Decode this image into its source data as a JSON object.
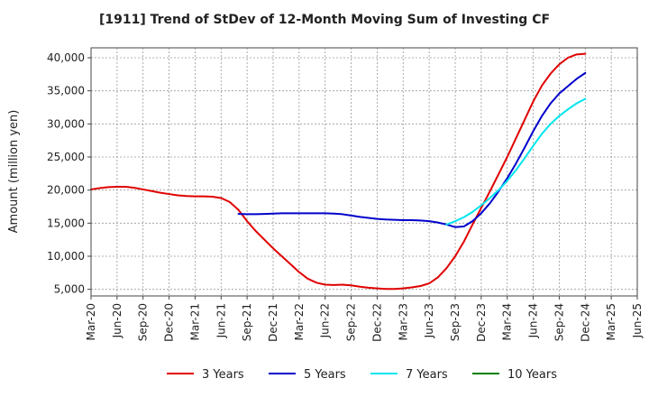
{
  "chart_data": {
    "type": "line",
    "title": "[1911]  Trend of StDev of 12-Month Moving Sum of Investing CF",
    "xlabel": "",
    "ylabel": "Amount (million yen)",
    "ylim": [
      4000,
      41500
    ],
    "yticks": [
      5000,
      10000,
      15000,
      20000,
      25000,
      30000,
      35000,
      40000
    ],
    "ytick_labels": [
      "5,000",
      "10,000",
      "15,000",
      "20,000",
      "25,000",
      "30,000",
      "35,000",
      "40,000"
    ],
    "xticks": [
      "Mar-20",
      "Jun-20",
      "Sep-20",
      "Dec-20",
      "Mar-21",
      "Jun-21",
      "Sep-21",
      "Dec-21",
      "Mar-22",
      "Jun-22",
      "Sep-22",
      "Dec-22",
      "Mar-23",
      "Jun-23",
      "Sep-23",
      "Dec-23",
      "Mar-24",
      "Jun-24",
      "Sep-24",
      "Dec-24",
      "Mar-25",
      "Jun-25"
    ],
    "grid": true,
    "legend_position": "bottom",
    "series": [
      {
        "name": "3 Years",
        "color": "#e00000",
        "points": [
          [
            "Mar-20",
            20100
          ],
          [
            "Apr-20",
            20300
          ],
          [
            "May-20",
            20450
          ],
          [
            "Jun-20",
            20500
          ],
          [
            "Jul-20",
            20500
          ],
          [
            "Aug-20",
            20350
          ],
          [
            "Sep-20",
            20100
          ],
          [
            "Oct-20",
            19850
          ],
          [
            "Nov-20",
            19600
          ],
          [
            "Dec-20",
            19400
          ],
          [
            "Jan-21",
            19200
          ],
          [
            "Feb-21",
            19100
          ],
          [
            "Mar-21",
            19050
          ],
          [
            "Apr-21",
            19050
          ],
          [
            "May-21",
            19000
          ],
          [
            "Jun-21",
            18800
          ],
          [
            "Jul-21",
            18200
          ],
          [
            "Aug-21",
            17000
          ],
          [
            "Sep-21",
            15300
          ],
          [
            "Oct-21",
            13800
          ],
          [
            "Nov-21",
            12500
          ],
          [
            "Dec-21",
            11200
          ],
          [
            "Jan-22",
            10000
          ],
          [
            "Feb-22",
            8800
          ],
          [
            "Mar-22",
            7600
          ],
          [
            "Apr-22",
            6600
          ],
          [
            "May-22",
            6000
          ],
          [
            "Jun-22",
            5700
          ],
          [
            "Jul-22",
            5650
          ],
          [
            "Aug-22",
            5700
          ],
          [
            "Sep-22",
            5600
          ],
          [
            "Oct-22",
            5400
          ],
          [
            "Nov-22",
            5250
          ],
          [
            "Dec-22",
            5150
          ],
          [
            "Jan-23",
            5050
          ],
          [
            "Feb-23",
            5050
          ],
          [
            "Mar-23",
            5150
          ],
          [
            "Apr-23",
            5300
          ],
          [
            "May-23",
            5500
          ],
          [
            "Jun-23",
            5900
          ],
          [
            "Jul-23",
            6800
          ],
          [
            "Aug-23",
            8200
          ],
          [
            "Sep-23",
            10000
          ],
          [
            "Oct-23",
            12200
          ],
          [
            "Nov-23",
            14800
          ],
          [
            "Dec-23",
            17300
          ],
          [
            "Jan-24",
            19800
          ],
          [
            "Feb-24",
            22400
          ],
          [
            "Mar-24",
            25000
          ],
          [
            "Apr-24",
            27800
          ],
          [
            "May-24",
            30600
          ],
          [
            "Jun-24",
            33400
          ],
          [
            "Jul-24",
            35800
          ],
          [
            "Aug-24",
            37600
          ],
          [
            "Sep-24",
            39000
          ],
          [
            "Oct-24",
            40000
          ],
          [
            "Nov-24",
            40500
          ],
          [
            "Dec-24",
            40600
          ]
        ]
      },
      {
        "name": "5 Years",
        "color": "#0000cc",
        "points": [
          [
            "Aug-21",
            16400
          ],
          [
            "Sep-21",
            16350
          ],
          [
            "Oct-21",
            16350
          ],
          [
            "Nov-21",
            16400
          ],
          [
            "Dec-21",
            16450
          ],
          [
            "Jan-22",
            16500
          ],
          [
            "Feb-22",
            16500
          ],
          [
            "Mar-22",
            16500
          ],
          [
            "Apr-22",
            16500
          ],
          [
            "May-22",
            16500
          ],
          [
            "Jun-22",
            16500
          ],
          [
            "Jul-22",
            16450
          ],
          [
            "Aug-22",
            16350
          ],
          [
            "Sep-22",
            16150
          ],
          [
            "Oct-22",
            15950
          ],
          [
            "Nov-22",
            15800
          ],
          [
            "Dec-22",
            15650
          ],
          [
            "Jan-23",
            15550
          ],
          [
            "Feb-23",
            15500
          ],
          [
            "Mar-23",
            15450
          ],
          [
            "Apr-23",
            15450
          ],
          [
            "May-23",
            15400
          ],
          [
            "Jun-23",
            15300
          ],
          [
            "Jul-23",
            15100
          ],
          [
            "Aug-23",
            14800
          ],
          [
            "Sep-23",
            14400
          ],
          [
            "Oct-23",
            14500
          ],
          [
            "Nov-23",
            15300
          ],
          [
            "Dec-23",
            16500
          ],
          [
            "Jan-24",
            18000
          ],
          [
            "Feb-24",
            19800
          ],
          [
            "Mar-24",
            21800
          ],
          [
            "Apr-24",
            24000
          ],
          [
            "May-24",
            26400
          ],
          [
            "Jun-24",
            28900
          ],
          [
            "Jul-24",
            31200
          ],
          [
            "Aug-24",
            33100
          ],
          [
            "Sep-24",
            34600
          ],
          [
            "Oct-24",
            35700
          ],
          [
            "Nov-24",
            36800
          ],
          [
            "Dec-24",
            37700
          ]
        ]
      },
      {
        "name": "7 Years",
        "color": "#00e5ee",
        "points": [
          [
            "Aug-23",
            14800
          ],
          [
            "Sep-23",
            15300
          ],
          [
            "Oct-23",
            15900
          ],
          [
            "Nov-23",
            16700
          ],
          [
            "Dec-23",
            17700
          ],
          [
            "Jan-24",
            18800
          ],
          [
            "Feb-24",
            20000
          ],
          [
            "Mar-24",
            21400
          ],
          [
            "Apr-24",
            23000
          ],
          [
            "May-24",
            24800
          ],
          [
            "Jun-24",
            26700
          ],
          [
            "Jul-24",
            28500
          ],
          [
            "Aug-24",
            30000
          ],
          [
            "Sep-24",
            31200
          ],
          [
            "Oct-24",
            32200
          ],
          [
            "Nov-24",
            33100
          ],
          [
            "Dec-24",
            33800
          ]
        ]
      },
      {
        "name": "10 Years",
        "color": "#008000",
        "points": []
      }
    ]
  }
}
